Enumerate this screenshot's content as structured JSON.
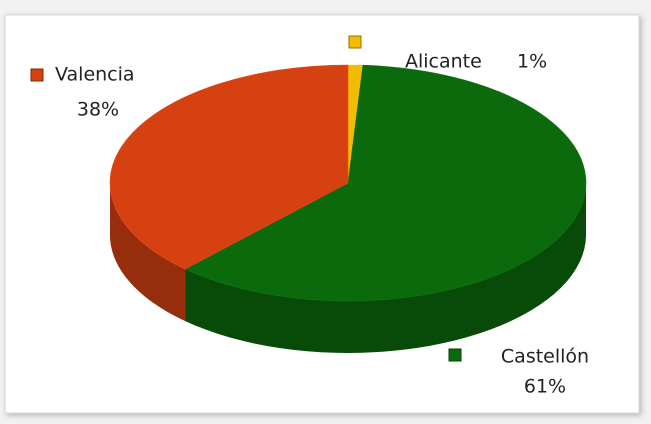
{
  "chart_data": {
    "type": "pie3d",
    "categories": [
      "Alicante",
      "Castellón",
      "Valencia"
    ],
    "values": [
      1,
      61,
      38
    ],
    "value_labels": [
      "1%",
      "61%",
      "38%"
    ],
    "colors": [
      "#f2bd00",
      "#0b6a0b",
      "#d64112"
    ]
  }
}
